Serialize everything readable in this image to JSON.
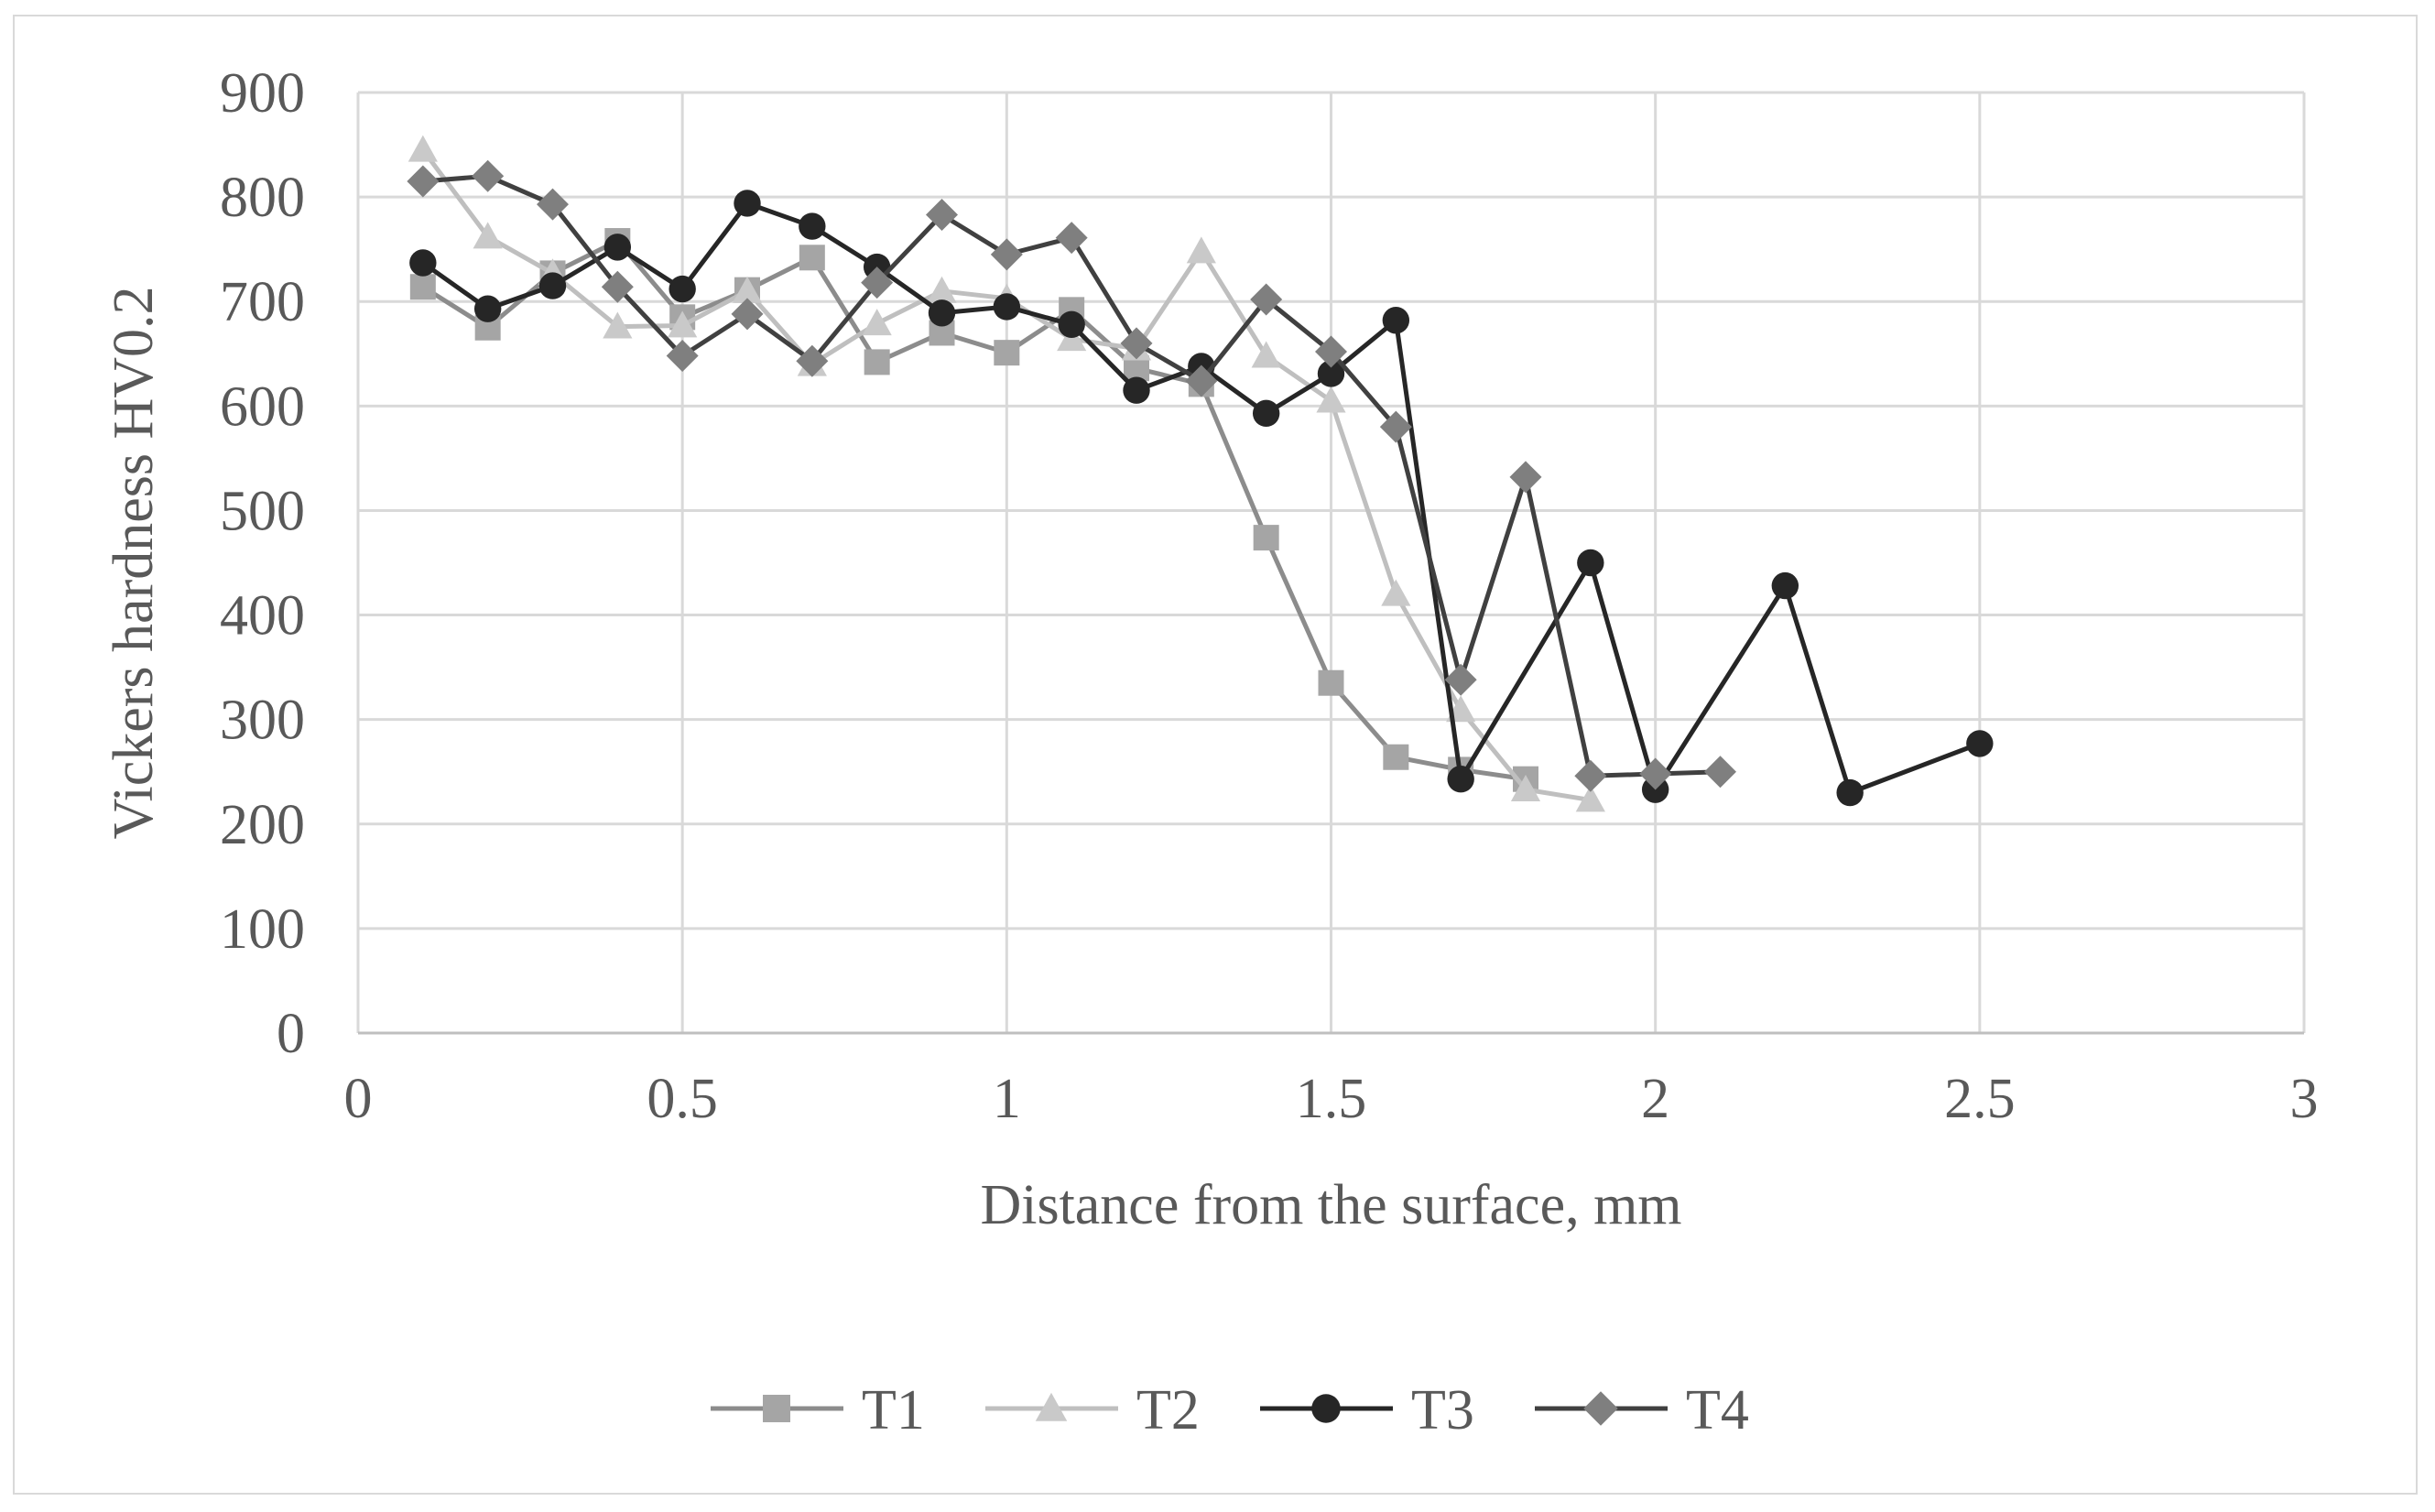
{
  "chart_data": {
    "type": "line",
    "title": "",
    "xlabel": "Distance from the surface, mm",
    "ylabel": "Vickers hardness HV0.2",
    "xlim": [
      0,
      3
    ],
    "ylim": [
      0,
      900
    ],
    "xticks": [
      0,
      0.5,
      1,
      1.5,
      2,
      2.5,
      3
    ],
    "xtick_labels": [
      "0",
      "0.5",
      "1",
      "1.5",
      "2",
      "2.5",
      "3"
    ],
    "yticks": [
      0,
      100,
      200,
      300,
      400,
      500,
      600,
      700,
      800,
      900
    ],
    "ytick_labels": [
      "0",
      "100",
      "200",
      "300",
      "400",
      "500",
      "600",
      "700",
      "800",
      "900"
    ],
    "grid": true,
    "legend_position": "bottom",
    "series": [
      {
        "name": "T1",
        "marker": "square",
        "color": "#a5a5a5",
        "line_color": "#8c8c8c",
        "x": [
          0.1,
          0.2,
          0.3,
          0.4,
          0.5,
          0.6,
          0.7,
          0.8,
          0.9,
          1.0,
          1.1,
          1.2,
          1.3,
          1.4,
          1.5,
          1.6,
          1.7,
          1.8
        ],
        "y": [
          714,
          675,
          727,
          758,
          685,
          711,
          742,
          642,
          670,
          651,
          692,
          636,
          621,
          474,
          335,
          264,
          252,
          243
        ]
      },
      {
        "name": "T2",
        "marker": "triangle",
        "color": "#c9c9c9",
        "line_color": "#bfbfbf",
        "x": [
          0.1,
          0.2,
          0.3,
          0.4,
          0.5,
          0.6,
          0.7,
          0.8,
          0.9,
          1.0,
          1.1,
          1.2,
          1.3,
          1.4,
          1.5,
          1.6,
          1.7,
          1.8,
          1.9
        ],
        "y": [
          845,
          762,
          727,
          676,
          677,
          710,
          640,
          679,
          710,
          703,
          664,
          655,
          748,
          648,
          605,
          420,
          309,
          233,
          223
        ]
      },
      {
        "name": "T3",
        "marker": "circle",
        "color": "#262626",
        "line_color": "#262626",
        "x": [
          0.1,
          0.2,
          0.3,
          0.4,
          0.5,
          0.6,
          0.7,
          0.8,
          0.9,
          1.0,
          1.1,
          1.2,
          1.3,
          1.4,
          1.5,
          1.6,
          1.7,
          1.9,
          2.0,
          2.2,
          2.3,
          2.5
        ],
        "y": [
          737,
          693,
          715,
          752,
          712,
          794,
          772,
          733,
          689,
          695,
          678,
          615,
          638,
          593,
          631,
          682,
          243,
          450,
          233,
          428,
          230,
          277
        ]
      },
      {
        "name": "T4",
        "marker": "diamond",
        "color": "#7f7f7f",
        "line_color": "#404040",
        "x": [
          0.1,
          0.2,
          0.3,
          0.4,
          0.5,
          0.6,
          0.7,
          0.8,
          0.9,
          1.0,
          1.1,
          1.2,
          1.3,
          1.4,
          1.5,
          1.6,
          1.7,
          1.8,
          1.9,
          2.0,
          2.1
        ],
        "y": [
          815,
          820,
          793,
          714,
          648,
          688,
          643,
          718,
          783,
          745,
          761,
          660,
          624,
          702,
          652,
          580,
          338,
          532,
          246,
          248,
          250
        ]
      }
    ]
  }
}
